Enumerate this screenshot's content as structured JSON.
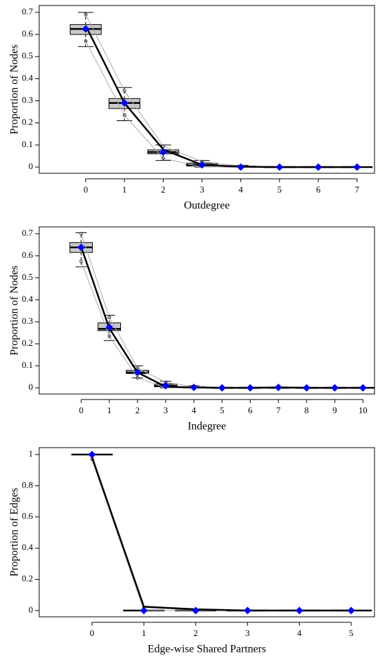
{
  "chart_data": [
    {
      "type": "boxplot",
      "x_label": "Outdegree",
      "y_label": "Proportion of Nodes",
      "categories": [
        0,
        1,
        2,
        3,
        4,
        5,
        6,
        7
      ],
      "xlim": [
        -1.2,
        7.45
      ],
      "ylim": [
        -0.028,
        0.731
      ],
      "yticks": [
        0,
        0.1,
        0.2,
        0.3,
        0.4,
        0.5,
        0.6,
        0.7
      ],
      "q1": [
        0.6,
        0.265,
        0.06,
        0.005,
        0,
        0,
        0,
        0
      ],
      "median": [
        0.625,
        0.29,
        0.068,
        0.01,
        0.002,
        0,
        0,
        0
      ],
      "q3": [
        0.645,
        0.31,
        0.078,
        0.018,
        0.004,
        0,
        0,
        0
      ],
      "whisker_low": [
        0.545,
        0.21,
        0.03,
        0,
        0,
        0,
        0,
        0
      ],
      "whisker_high": [
        0.7,
        0.36,
        0.1,
        0.03,
        0.008,
        0,
        0,
        0
      ],
      "observed": [
        0.625,
        0.29,
        0.068,
        0.01,
        0,
        0,
        0,
        0
      ],
      "mean": [
        0.64,
        0.29,
        0.08,
        0.01,
        0.002,
        0,
        0,
        0
      ],
      "upper": [
        0.69,
        0.345,
        0.095,
        0.025,
        0.005,
        0,
        0,
        0
      ],
      "lower": [
        0.57,
        0.235,
        0.04,
        0,
        0,
        0,
        0,
        0
      ],
      "box_color": "#c8c8c8",
      "observed_color": "#0000ff",
      "mean_color": "#000000",
      "band_color": "#aaaaaa"
    },
    {
      "type": "boxplot",
      "x_label": "Indegree",
      "y_label": "Proportion of Nodes",
      "categories": [
        0,
        1,
        2,
        3,
        4,
        5,
        6,
        7,
        8,
        9,
        10
      ],
      "xlim": [
        -1.49,
        10.41
      ],
      "ylim": [
        -0.028,
        0.731
      ],
      "yticks": [
        0,
        0.1,
        0.2,
        0.3,
        0.4,
        0.5,
        0.6,
        0.7
      ],
      "q1": [
        0.615,
        0.26,
        0.065,
        0.005,
        0,
        0,
        0,
        0,
        0,
        0,
        0
      ],
      "median": [
        0.638,
        0.268,
        0.07,
        0.01,
        0.002,
        0,
        0,
        0,
        0,
        0,
        0
      ],
      "q3": [
        0.66,
        0.295,
        0.08,
        0.018,
        0.005,
        0,
        0,
        0,
        0,
        0,
        0
      ],
      "whisker_low": [
        0.55,
        0.215,
        0.045,
        0,
        0,
        0,
        0,
        0,
        0,
        0,
        0
      ],
      "whisker_high": [
        0.705,
        0.33,
        0.1,
        0.03,
        0.01,
        0,
        0,
        0,
        0,
        0,
        0
      ],
      "observed": [
        0.638,
        0.275,
        0.07,
        0.01,
        0.002,
        0,
        0,
        0.002,
        0,
        0,
        0
      ],
      "mean": [
        0.64,
        0.27,
        0.07,
        0.005,
        0.002,
        0,
        0,
        0.002,
        0,
        0,
        0
      ],
      "upper": [
        0.7,
        0.32,
        0.09,
        0.025,
        0.005,
        0,
        0,
        0.003,
        0,
        0,
        0
      ],
      "lower": [
        0.575,
        0.235,
        0.045,
        0,
        0,
        0,
        0,
        0,
        0,
        0,
        0
      ],
      "box_color": "#c8c8c8",
      "observed_color": "#0000ff",
      "mean_color": "#000000",
      "band_color": "#aaaaaa"
    },
    {
      "type": "boxplot",
      "x_label": "Edge-wise Shared Partners",
      "y_label": "Proportion of Edges",
      "categories": [
        0,
        1,
        2,
        3,
        4,
        5
      ],
      "xlim": [
        -1.02,
        5.45
      ],
      "ylim": [
        -0.04,
        1.044
      ],
      "yticks": [
        0,
        0.2,
        0.4,
        0.6,
        0.8,
        1
      ],
      "q1": [
        1,
        0,
        0,
        0,
        0,
        0
      ],
      "median": [
        1,
        0,
        0,
        0,
        0,
        0
      ],
      "q3": [
        1,
        0,
        0,
        0,
        0,
        0
      ],
      "whisker_low": [
        1,
        0,
        0,
        0,
        0,
        0
      ],
      "whisker_high": [
        1,
        0,
        0,
        0,
        0,
        0
      ],
      "observed": [
        1,
        0,
        0,
        0,
        0,
        0
      ],
      "mean": [
        0.98,
        0.025,
        0.008,
        0,
        0,
        0
      ],
      "upper": [
        1,
        0.02,
        0.005,
        0,
        0,
        0
      ],
      "lower": [
        0.97,
        0,
        0,
        0,
        0,
        0
      ],
      "box_color": "#c8c8c8",
      "observed_color": "#0000ff",
      "mean_color": "#000000",
      "band_color": "#aaaaaa"
    }
  ]
}
